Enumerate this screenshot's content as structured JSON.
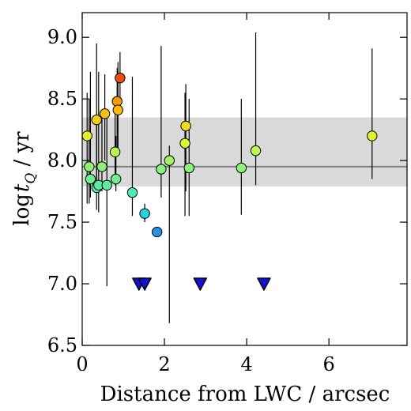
{
  "chart_data": {
    "type": "scatter",
    "title": "",
    "xlabel": "Distance from LWC / arcsec",
    "ylabel": "log t_Q / yr",
    "ylabel_parts": {
      "prefix": "log",
      "var": "t",
      "sub": "Q",
      "suffix": " / yr"
    },
    "xlim": [
      0,
      7.9
    ],
    "ylim": [
      6.5,
      9.2
    ],
    "xticks": [
      0,
      2,
      4,
      6
    ],
    "yticks": [
      6.5,
      7.0,
      7.5,
      8.0,
      8.5,
      9.0
    ],
    "xtick_labels": [
      "0",
      "2",
      "4",
      "6"
    ],
    "ytick_labels": [
      "6.5",
      "7.0",
      "7.5",
      "8.0",
      "8.5",
      "9.0"
    ],
    "grid": false,
    "reference_line": {
      "y": 7.95,
      "color": "#808080"
    },
    "reference_band": {
      "y_min": 7.79,
      "y_max": 8.35,
      "color": "#d9d9d9"
    },
    "colorscale": {
      "stops": [
        {
          "t": 0.0,
          "color": "#0000cd"
        },
        {
          "t": 0.18,
          "color": "#1f62f2"
        },
        {
          "t": 0.36,
          "color": "#22e6d8"
        },
        {
          "t": 0.52,
          "color": "#74f28a"
        },
        {
          "t": 0.68,
          "color": "#ddfa2a"
        },
        {
          "t": 0.82,
          "color": "#ffc000"
        },
        {
          "t": 1.0,
          "color": "#ee4000"
        }
      ],
      "range": [
        7.0,
        8.7
      ]
    },
    "points": [
      {
        "x": 0.12,
        "y": 8.2,
        "ylo": 7.65,
        "yhi": 8.55
      },
      {
        "x": 0.17,
        "y": 7.95,
        "ylo": 7.65,
        "yhi": 8.5
      },
      {
        "x": 0.2,
        "y": 7.85,
        "ylo": 7.7,
        "yhi": 8.72
      },
      {
        "x": 0.35,
        "y": 8.33,
        "ylo": 7.75,
        "yhi": 8.95
      },
      {
        "x": 0.35,
        "y": 7.78,
        "ylo": 7.6,
        "yhi": 8.35
      },
      {
        "x": 0.4,
        "y": 7.8,
        "ylo": 7.58,
        "yhi": 8.72
      },
      {
        "x": 0.48,
        "y": 7.95,
        "ylo": 7.75,
        "yhi": 8.4
      },
      {
        "x": 0.55,
        "y": 8.38,
        "ylo": 8.0,
        "yhi": 8.7
      },
      {
        "x": 0.6,
        "y": 7.8,
        "ylo": 6.98,
        "yhi": 8.35
      },
      {
        "x": 0.8,
        "y": 8.07,
        "ylo": 7.8,
        "yhi": 8.45
      },
      {
        "x": 0.82,
        "y": 7.85,
        "ylo": 7.75,
        "yhi": 8.2
      },
      {
        "x": 0.85,
        "y": 8.48,
        "ylo": 8.1,
        "yhi": 8.75
      },
      {
        "x": 0.87,
        "y": 8.41,
        "ylo": 8.05,
        "yhi": 8.8
      },
      {
        "x": 0.92,
        "y": 8.67,
        "ylo": 8.45,
        "yhi": 8.88
      },
      {
        "x": 1.22,
        "y": 7.74,
        "ylo": 7.55,
        "yhi": 8.68
      },
      {
        "x": 1.52,
        "y": 7.57,
        "ylo": 7.5,
        "yhi": 7.65
      },
      {
        "x": 1.82,
        "y": 7.42,
        "ylo": 7.42,
        "yhi": 7.42
      },
      {
        "x": 1.92,
        "y": 7.93,
        "ylo": 7.7,
        "yhi": 8.93
      },
      {
        "x": 2.12,
        "y": 8.0,
        "ylo": 6.68,
        "yhi": 8.12
      },
      {
        "x": 2.5,
        "y": 8.14,
        "ylo": 7.55,
        "yhi": 8.55
      },
      {
        "x": 2.52,
        "y": 8.28,
        "ylo": 7.75,
        "yhi": 8.62
      },
      {
        "x": 2.6,
        "y": 7.94,
        "ylo": 7.55,
        "yhi": 8.5
      },
      {
        "x": 3.87,
        "y": 7.94,
        "ylo": 7.56,
        "yhi": 8.5
      },
      {
        "x": 4.22,
        "y": 8.08,
        "ylo": 7.8,
        "yhi": 9.04
      },
      {
        "x": 7.05,
        "y": 8.2,
        "ylo": 7.85,
        "yhi": 8.91
      }
    ],
    "upper_limits": [
      {
        "x": 1.38,
        "y": 7.0
      },
      {
        "x": 1.52,
        "y": 7.0
      },
      {
        "x": 2.87,
        "y": 7.0
      },
      {
        "x": 4.42,
        "y": 7.0
      }
    ],
    "upper_limit_color": "#1010e0"
  }
}
